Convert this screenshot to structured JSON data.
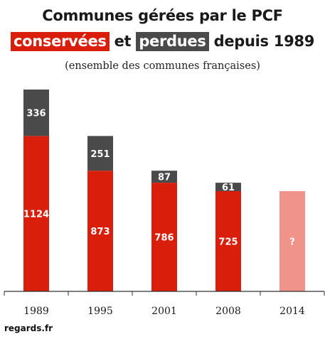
{
  "title": {
    "line1": "Communes gérées par le PCF",
    "kept_label": "conservées",
    "connector": "et",
    "lost_label": "perdues",
    "suffix": "depuis 1989"
  },
  "subtitle": "(ensemble des communes françaises)",
  "source": "regards.fr",
  "colors": {
    "kept": "#d91f0b",
    "lost": "#4a4a4a",
    "unknown": "#f0938a",
    "axis": "#333333"
  },
  "chart_data": {
    "type": "bar",
    "stacked": true,
    "categories": [
      "1989",
      "1995",
      "2001",
      "2008",
      "2014"
    ],
    "series": [
      {
        "name": "conservées",
        "values": [
          1124,
          873,
          786,
          725,
          725
        ],
        "labels": [
          "1124",
          "873",
          "786",
          "725",
          "?"
        ]
      },
      {
        "name": "perdues",
        "values": [
          336,
          251,
          87,
          61,
          0
        ],
        "labels": [
          "336",
          "251",
          "87",
          "61",
          ""
        ]
      }
    ],
    "ylim": [
      0,
      1460
    ],
    "grid": false,
    "legend": "in title",
    "xlabel": "",
    "ylabel": ""
  }
}
